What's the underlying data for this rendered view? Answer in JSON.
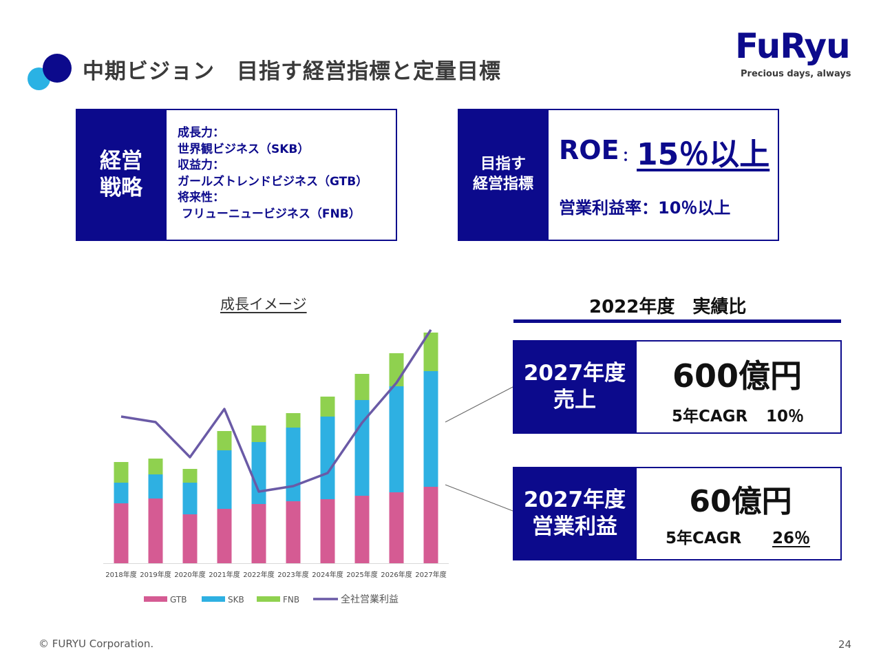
{
  "header": {
    "title": "中期ビジョン　目指す経営指標と定量目標",
    "logo_word": "FuRyu",
    "logo_tagline": "Precious days, always"
  },
  "strategy": {
    "heading_line1": "経営",
    "heading_line2": "戦略",
    "lines": [
      "成長力：",
      "世界観ビジネス（SKB）",
      "収益力：",
      "ガールズトレンドビジネス（GTB）",
      "将来性：",
      " フリューニュービジネス（FNB）"
    ]
  },
  "targets": {
    "heading_line1": "目指す",
    "heading_line2": "経営指標",
    "roe_label": "ROE",
    "roe_colon": "：",
    "roe_value": "15％以上",
    "margin_text": "営業利益率：10％以上"
  },
  "chart_title": "成長イメージ",
  "ratio": {
    "title": "2022年度　実績比",
    "sales": {
      "label_line1": "2027年度",
      "label_line2": "売上",
      "value": "600億円",
      "cagr_label": "5年CAGR",
      "cagr_value": "10％"
    },
    "profit": {
      "label_line1": "2027年度",
      "label_line2": "営業利益",
      "value": "60億円",
      "cagr_label": "5年CAGR",
      "cagr_value": "26％"
    }
  },
  "footer": {
    "copyright": "© FURYU Corporation.",
    "page": "24"
  },
  "colors": {
    "navy": "#0c0a8c",
    "gtb": "#d55b93",
    "skb": "#2eb0e2",
    "fnb": "#8fd14f",
    "profit_line": "#6a5aa6"
  },
  "chart_data": {
    "type": "bar",
    "stacked": true,
    "categories": [
      "2018年度",
      "2019年度",
      "2020年度",
      "2021年度",
      "2022年度",
      "2023年度",
      "2024年度",
      "2025年度",
      "2026年度",
      "2027年度"
    ],
    "series": [
      {
        "name": "GTB",
        "kind": "bar",
        "color": "#d55b93",
        "values": [
          87,
          94,
          71,
          79,
          86,
          90,
          93,
          98,
          103,
          111
        ]
      },
      {
        "name": "SKB",
        "kind": "bar",
        "color": "#2eb0e2",
        "values": [
          30,
          35,
          46,
          85,
          90,
          107,
          120,
          139,
          154,
          168
        ]
      },
      {
        "name": "FNB",
        "kind": "bar",
        "color": "#8fd14f",
        "values": [
          30,
          23,
          20,
          28,
          24,
          21,
          29,
          38,
          48,
          56
        ]
      },
      {
        "name": "全社営業利益",
        "kind": "line",
        "color": "#6a5aa6",
        "values": [
          213,
          205,
          154,
          224,
          104,
          112,
          131,
          204,
          262,
          339
        ]
      }
    ],
    "ylim": [
      0,
      340
    ],
    "y_axis_visible": false,
    "grid": false,
    "legend": "bottom",
    "title": "成長イメージ"
  }
}
